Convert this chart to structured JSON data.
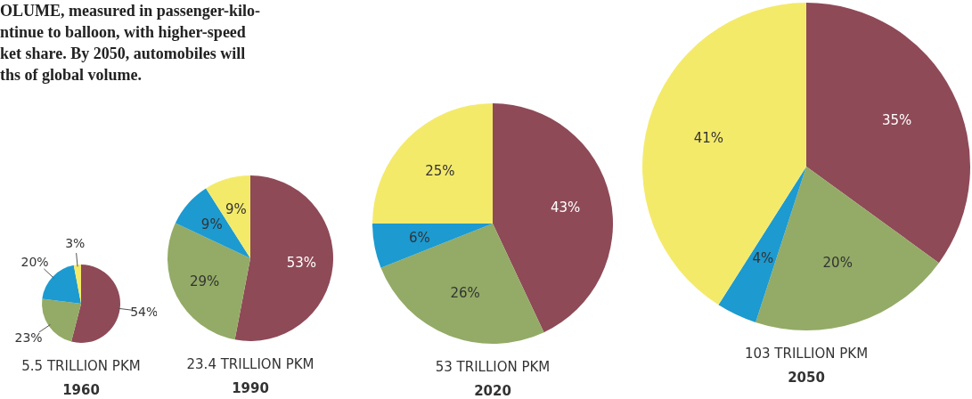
{
  "chart_data": [
    {
      "type": "pie",
      "title": "1960",
      "subtitle": "5.5 TRILLION PKM",
      "categories": [
        null,
        null,
        null,
        null
      ],
      "values": [
        54,
        23,
        20,
        3
      ],
      "value_labels": [
        "54%",
        "23%",
        "20%",
        "3%"
      ],
      "colors": [
        "#8e4a57",
        "#93ab66",
        "#1d9ad0",
        "#f4ea6a"
      ],
      "annotations": [
        "OLUME, measured in passenger-kilo-",
        "ntinue to balloon, with higher-speed",
        "ket share. By 2050, automobiles will",
        "ths of global volume."
      ]
    },
    {
      "type": "pie",
      "title": "1990",
      "subtitle": "23.4 TRILLION PKM",
      "categories": [
        null,
        null,
        null,
        null
      ],
      "values": [
        53,
        29,
        9,
        9
      ],
      "value_labels": [
        "53%",
        "29%",
        "9%",
        "9%"
      ],
      "colors": [
        "#8e4a57",
        "#93ab66",
        "#1d9ad0",
        "#f4ea6a"
      ]
    },
    {
      "type": "pie",
      "title": "2020",
      "subtitle": "53 TRILLION PKM",
      "categories": [
        null,
        null,
        null,
        null
      ],
      "values": [
        43,
        26,
        6,
        25
      ],
      "value_labels": [
        "43%",
        "26%",
        "6%",
        "25%"
      ],
      "colors": [
        "#8e4a57",
        "#93ab66",
        "#1d9ad0",
        "#f4ea6a"
      ]
    },
    {
      "type": "pie",
      "title": "2050",
      "subtitle": "103 TRILLION PKM",
      "categories": [
        null,
        null,
        null,
        null
      ],
      "values": [
        35,
        20,
        4,
        41
      ],
      "value_labels": [
        "35%",
        "20%",
        "4%",
        "41%"
      ],
      "colors": [
        "#8e4a57",
        "#93ab66",
        "#1d9ad0",
        "#f4ea6a"
      ]
    }
  ]
}
